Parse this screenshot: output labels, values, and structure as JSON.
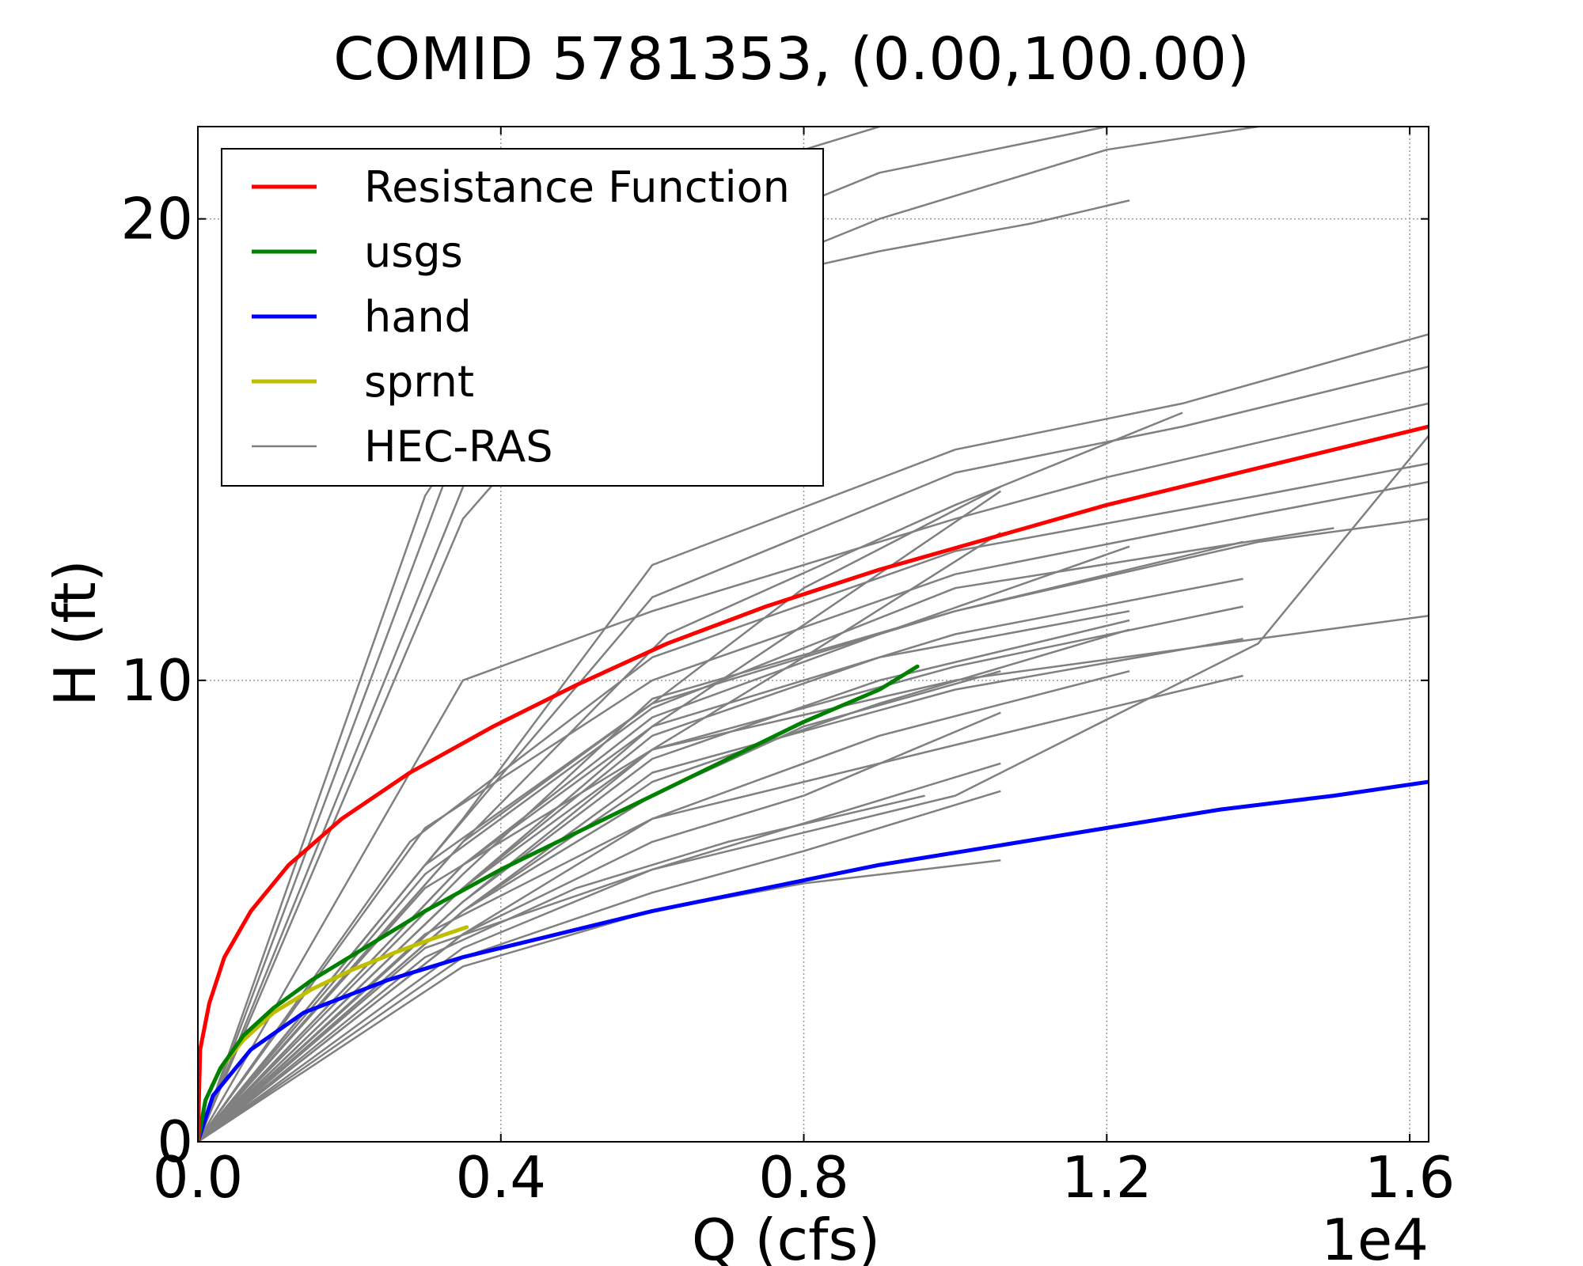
{
  "chart_data": {
    "type": "line",
    "title": "COMID 5781353, (0.00,100.00)",
    "xlabel": "Q (cfs)",
    "ylabel": "H (ft)",
    "x_offset_label": "1e4",
    "xlim": [
      0,
      1.625
    ],
    "ylim": [
      0,
      22
    ],
    "x_ticks": [
      0,
      0.4,
      0.8,
      1.2,
      1.6
    ],
    "x_tick_labels": [
      "0.0",
      "0.4",
      "0.8",
      "1.2",
      "1.6"
    ],
    "y_ticks": [
      0,
      10,
      20
    ],
    "y_tick_labels": [
      "0",
      "10",
      "20"
    ],
    "grid": true,
    "legend_position": "top-left",
    "series": [
      {
        "name": "Resistance Function",
        "color": "#ff0000",
        "width": 5,
        "x": [
          0,
          0.003,
          0.015,
          0.035,
          0.07,
          0.12,
          0.19,
          0.28,
          0.39,
          0.5,
          0.62,
          0.75,
          0.9,
          1.05,
          1.2,
          1.35,
          1.5,
          1.625
        ],
        "y": [
          0,
          2,
          3,
          4,
          5,
          6,
          7,
          8,
          9,
          9.9,
          10.8,
          11.6,
          12.4,
          13.1,
          13.8,
          14.4,
          15,
          15.5
        ]
      },
      {
        "name": "usgs",
        "color": "#008000",
        "width": 5,
        "x": [
          0,
          0.01,
          0.03,
          0.06,
          0.1,
          0.15,
          0.22,
          0.3,
          0.4,
          0.5,
          0.6,
          0.7,
          0.8,
          0.9,
          0.95
        ],
        "y": [
          0,
          0.9,
          1.6,
          2.3,
          2.9,
          3.5,
          4.2,
          5,
          5.9,
          6.7,
          7.5,
          8.3,
          9.1,
          9.8,
          10.3
        ]
      },
      {
        "name": "hand",
        "color": "#0000ff",
        "width": 5,
        "x": [
          0,
          0.02,
          0.07,
          0.14,
          0.25,
          0.35,
          0.45,
          0.6,
          0.75,
          0.9,
          1.05,
          1.2,
          1.35,
          1.5,
          1.625
        ],
        "y": [
          0,
          1,
          2,
          2.8,
          3.5,
          4,
          4.4,
          5,
          5.5,
          6,
          6.4,
          6.8,
          7.2,
          7.5,
          7.8
        ]
      },
      {
        "name": "sprnt",
        "color": "#bfbf00",
        "width": 5,
        "x": [
          0,
          0.01,
          0.03,
          0.06,
          0.1,
          0.15,
          0.2,
          0.26,
          0.31,
          0.355
        ],
        "y": [
          0,
          0.9,
          1.6,
          2.2,
          2.8,
          3.3,
          3.7,
          4.1,
          4.4,
          4.65
        ]
      },
      {
        "name": "HEC-RAS",
        "color": "#808080",
        "width": 2.5,
        "curves": [
          {
            "x": [
              0,
              0.35,
              0.6,
              1.0,
              1.2,
              1.625
            ],
            "y": [
              0,
              10,
              11.5,
              13.5,
              14.4,
              16
            ]
          },
          {
            "x": [
              0,
              0.35,
              0.6,
              1.0,
              1.3,
              1.625
            ],
            "y": [
              0,
              7,
              12.5,
              15,
              16,
              17.5
            ]
          },
          {
            "x": [
              0,
              0.3,
              0.6,
              1.0,
              1.3,
              1.625
            ],
            "y": [
              0,
              6,
              11.8,
              14.5,
              15.5,
              16.8
            ]
          },
          {
            "x": [
              0,
              0.35,
              0.62,
              1.0,
              1.3
            ],
            "y": [
              0,
              6.5,
              11,
              13.8,
              15.8
            ]
          },
          {
            "x": [
              0,
              0.28,
              0.6,
              1.0,
              1.4,
              1.625
            ],
            "y": [
              0,
              6.5,
              10.5,
              12.8,
              14,
              14.7
            ]
          },
          {
            "x": [
              0,
              0.3,
              0.6,
              1.0,
              1.4,
              1.625
            ],
            "y": [
              0,
              6.8,
              10,
              12.3,
              13.6,
              14.3
            ]
          },
          {
            "x": [
              0,
              0.3,
              0.6,
              1.0,
              1.4,
              1.625
            ],
            "y": [
              0,
              6,
              9.5,
              11.5,
              13,
              13.5
            ]
          },
          {
            "x": [
              0,
              0.3,
              0.6,
              1.0,
              1.4,
              1.625
            ],
            "y": [
              0,
              5.5,
              8.5,
              10,
              10.9,
              11.4
            ]
          },
          {
            "x": [
              0,
              0.3,
              0.6,
              1.0,
              1.4,
              1.625
            ],
            "y": [
              0,
              4.2,
              5.9,
              7.5,
              10.8,
              15.3
            ]
          },
          {
            "x": [
              0,
              0.3,
              0.6,
              1.0,
              1.5
            ],
            "y": [
              0,
              5.8,
              9.4,
              12,
              13.3
            ]
          },
          {
            "x": [
              0,
              0.35,
              0.6,
              0.8,
              1.06
            ],
            "y": [
              0,
              6.5,
              9.5,
              12,
              14.2
            ]
          },
          {
            "x": [
              0,
              0.35,
              0.6,
              0.8,
              1.06
            ],
            "y": [
              0,
              6,
              9,
              11.2,
              14.1
            ]
          },
          {
            "x": [
              0,
              0.35,
              0.6,
              0.8,
              1.06
            ],
            "y": [
              0,
              5.5,
              8.5,
              10.5,
              13.2
            ]
          },
          {
            "x": [
              0,
              0.35,
              0.6,
              0.8,
              1.06
            ],
            "y": [
              0,
              5,
              7.5,
              9,
              10.2
            ]
          },
          {
            "x": [
              0,
              0.35,
              0.6,
              0.8,
              1.06
            ],
            "y": [
              0,
              4.5,
              6.5,
              7.5,
              9.3
            ]
          },
          {
            "x": [
              0,
              0.35,
              0.6,
              0.8,
              1.06
            ],
            "y": [
              0,
              4.2,
              5.9,
              6.9,
              8.2
            ]
          },
          {
            "x": [
              0,
              0.35,
              0.6,
              0.8,
              1.06
            ],
            "y": [
              0,
              4,
              5.4,
              6.3,
              7.6
            ]
          },
          {
            "x": [
              0,
              0.35,
              0.6,
              0.8,
              1.06
            ],
            "y": [
              0,
              3.8,
              5,
              5.6,
              6.1
            ]
          },
          {
            "x": [
              0,
              0.3,
              0.5,
              0.7,
              0.96
            ],
            "y": [
              0,
              4,
              5.5,
              6.5,
              7.5
            ]
          },
          {
            "x": [
              0,
              0.35,
              0.6,
              0.9,
              1.23
            ],
            "y": [
              0,
              6,
              9.2,
              11,
              12.9
            ]
          },
          {
            "x": [
              0,
              0.35,
              0.6,
              0.9,
              1.23
            ],
            "y": [
              0,
              5.5,
              8.8,
              10.5,
              11.5
            ]
          },
          {
            "x": [
              0,
              0.35,
              0.6,
              0.9,
              1.23
            ],
            "y": [
              0,
              5.2,
              8.3,
              10,
              11.3
            ]
          },
          {
            "x": [
              0,
              0.35,
              0.6,
              0.9,
              1.23
            ],
            "y": [
              0,
              5,
              7.8,
              9.5,
              11.1
            ]
          },
          {
            "x": [
              0,
              0.3,
              0.6,
              0.9,
              1.23
            ],
            "y": [
              0,
              4.5,
              7,
              8.8,
              10.2
            ]
          },
          {
            "x": [
              0,
              0.35,
              0.6,
              1.0,
              1.38
            ],
            "y": [
              0,
              5.8,
              9.6,
              11.5,
              13
            ]
          },
          {
            "x": [
              0,
              0.35,
              0.6,
              1.0,
              1.38
            ],
            "y": [
              0,
              5.5,
              9,
              11,
              12.2
            ]
          },
          {
            "x": [
              0,
              0.35,
              0.6,
              1.0,
              1.38
            ],
            "y": [
              0,
              5.2,
              8.5,
              10.3,
              11.6
            ]
          },
          {
            "x": [
              0,
              0.35,
              0.6,
              1.0,
              1.38
            ],
            "y": [
              0,
              5,
              8,
              9.8,
              10.9
            ]
          },
          {
            "x": [
              0,
              0.35,
              0.6,
              1.0,
              1.38
            ],
            "y": [
              0,
              4.5,
              7,
              8.6,
              10.1
            ]
          },
          {
            "x": [
              0,
              0.35,
              0.6,
              0.9,
              1.1,
              1.23
            ],
            "y": [
              0,
              13.5,
              18.2,
              19.3,
              19.9,
              20.4
            ]
          },
          {
            "x": [
              0,
              0.37,
              0.6,
              0.9,
              1.2,
              1.6
            ],
            "y": [
              0,
              15,
              19,
              21,
              22,
              23
            ]
          },
          {
            "x": [
              0,
              0.33,
              0.6,
              0.9,
              1.2,
              1.6
            ],
            "y": [
              0,
              14.5,
              18,
              20,
              21.5,
              22.5
            ]
          },
          {
            "x": [
              0,
              0.3,
              0.5,
              0.8,
              1.1,
              1.4
            ],
            "y": [
              0,
              14,
              19,
              21.5,
              23,
              24
            ]
          }
        ]
      }
    ]
  }
}
